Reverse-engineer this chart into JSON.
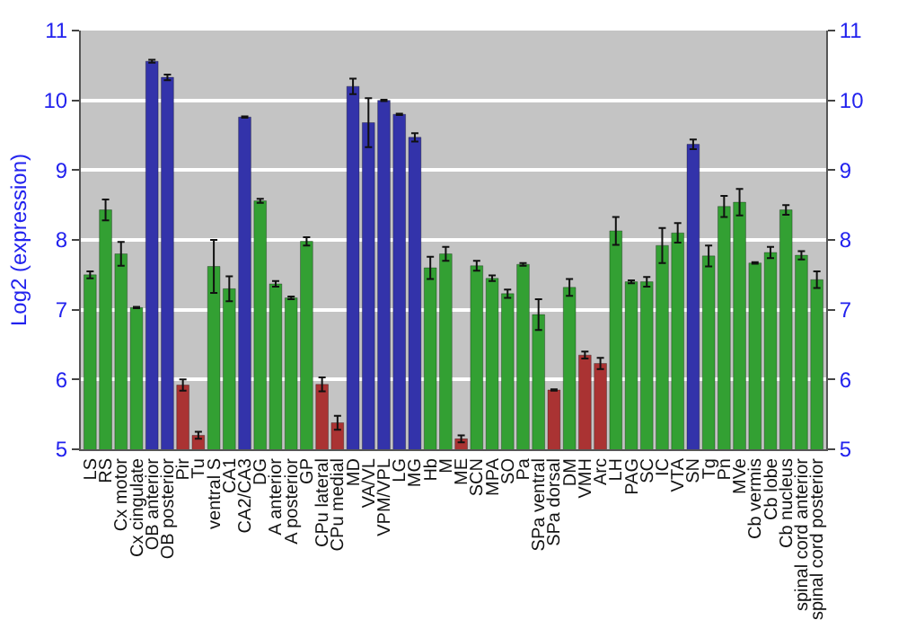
{
  "chart_data": {
    "type": "bar",
    "ylabel": "Log2 (expression)",
    "categories": [
      "LS",
      "RS",
      "Cx motor",
      "Cx cingulate",
      "OB anterior",
      "OB posterior",
      "Pir",
      "Tu",
      "ventral S",
      "CA1",
      "CA2/CA3",
      "DG",
      "A anterior",
      "A posterior",
      "GP",
      "CPu lateral",
      "CPu medial",
      "MD",
      "VA/VL",
      "VPM/VPL",
      "LG",
      "MG",
      "Hb",
      "M",
      "ME",
      "SCN",
      "MPA",
      "SO",
      "Pa",
      "SPa ventral",
      "SPa dorsal",
      "DM",
      "VMH",
      "Arc",
      "LH",
      "PAG",
      "SC",
      "IC",
      "VTA",
      "SN",
      "Tg",
      "Pn",
      "MVe",
      "Cb vermis",
      "Cb lobe",
      "Cb nucleus",
      "spinal cord anterior",
      "spinal cord posterior"
    ],
    "values": [
      7.5,
      8.43,
      7.8,
      7.03,
      10.56,
      10.33,
      5.92,
      5.2,
      7.62,
      7.3,
      9.76,
      8.56,
      7.37,
      7.17,
      7.98,
      5.93,
      5.38,
      10.2,
      9.68,
      10.0,
      9.8,
      9.47,
      7.6,
      7.8,
      5.15,
      7.63,
      7.45,
      7.23,
      7.65,
      6.93,
      5.85,
      7.32,
      6.35,
      6.23,
      8.13,
      7.4,
      7.4,
      7.92,
      8.1,
      9.37,
      7.77,
      8.48,
      8.54,
      7.67,
      7.82,
      8.43,
      7.78,
      7.43
    ],
    "errors": [
      0.05,
      0.15,
      0.17,
      0.01,
      0.02,
      0.04,
      0.08,
      0.05,
      0.38,
      0.18,
      0.01,
      0.03,
      0.04,
      0.02,
      0.06,
      0.1,
      0.1,
      0.11,
      0.35,
      0.01,
      0.01,
      0.06,
      0.16,
      0.1,
      0.05,
      0.07,
      0.04,
      0.06,
      0.02,
      0.22,
      0.01,
      0.12,
      0.05,
      0.08,
      0.2,
      0.02,
      0.07,
      0.25,
      0.14,
      0.07,
      0.15,
      0.15,
      0.19,
      0.01,
      0.08,
      0.07,
      0.06,
      0.12
    ],
    "colors": [
      "#33a033",
      "#33a033",
      "#33a033",
      "#33a033",
      "#3333aa",
      "#3333aa",
      "#aa3333",
      "#aa3333",
      "#33a033",
      "#33a033",
      "#3333aa",
      "#33a033",
      "#33a033",
      "#33a033",
      "#33a033",
      "#aa3333",
      "#aa3333",
      "#3333aa",
      "#3333aa",
      "#3333aa",
      "#3333aa",
      "#3333aa",
      "#33a033",
      "#33a033",
      "#aa3333",
      "#33a033",
      "#33a033",
      "#33a033",
      "#33a033",
      "#33a033",
      "#aa3333",
      "#33a033",
      "#aa3333",
      "#aa3333",
      "#33a033",
      "#33a033",
      "#33a033",
      "#33a033",
      "#33a033",
      "#3333aa",
      "#33a033",
      "#33a033",
      "#33a033",
      "#33a033",
      "#33a033",
      "#33a033",
      "#33a033",
      "#33a033"
    ],
    "ylim": [
      5,
      11
    ],
    "yticks": [
      5,
      6,
      7,
      8,
      9,
      10,
      11
    ],
    "y2lim": [
      5,
      11
    ],
    "y2ticks": [
      5,
      6,
      7,
      8,
      9,
      10,
      11
    ],
    "grid": "y"
  }
}
